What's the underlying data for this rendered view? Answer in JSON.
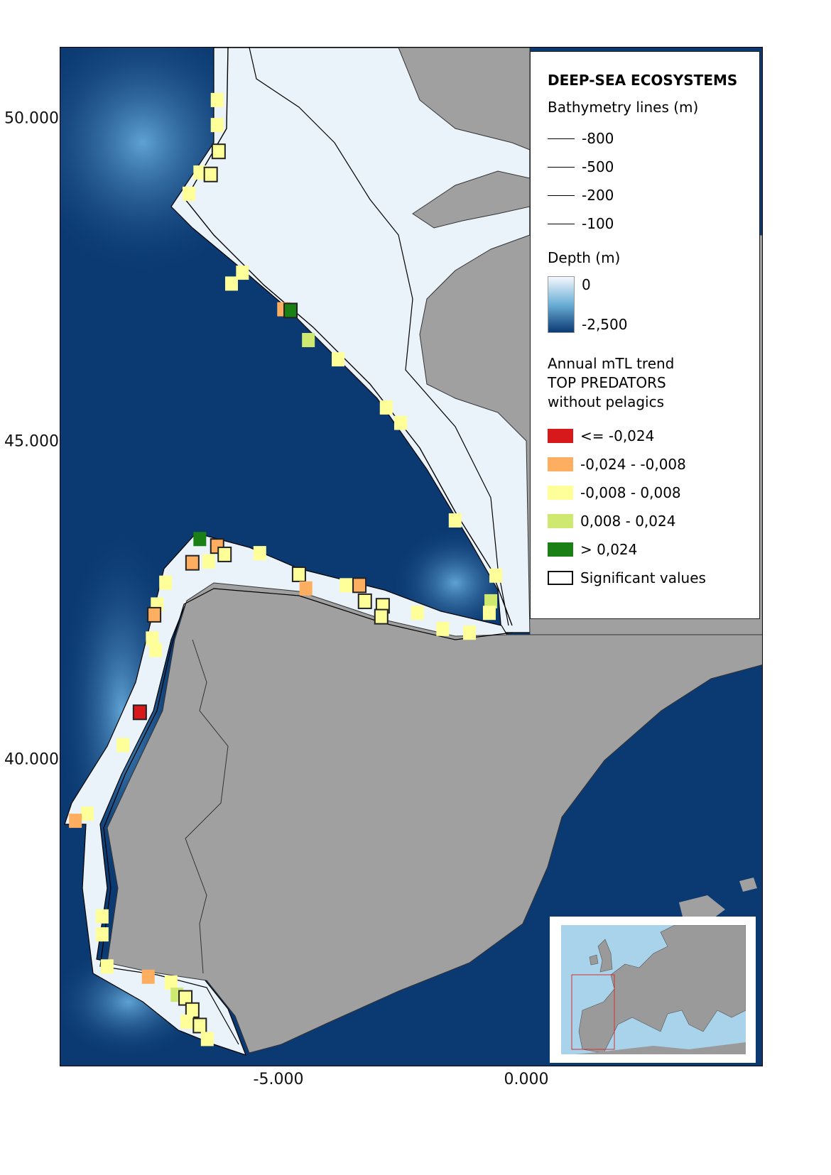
{
  "axes": {
    "lat_labels": [
      {
        "value": 50,
        "text": "50.000"
      },
      {
        "value": 45,
        "text": "45.000"
      },
      {
        "value": 40,
        "text": "40.000"
      }
    ],
    "lon_labels": [
      {
        "value": -5,
        "text": "-5.000"
      },
      {
        "value": 0,
        "text": "0.000"
      }
    ]
  },
  "colors": {
    "deep_sea": "#0b3a72",
    "shelf": "#eaf2fa",
    "land": "#a0a0a0",
    "inset_sea": "#a9d3ea",
    "inset_frame": "#d43030"
  },
  "legend": {
    "title": "DEEP-SEA ECOSYSTEMS",
    "bathymetry_title": "Bathymetry lines (m)",
    "bathymetry_lines": [
      "-800",
      "-500",
      "-200",
      "-100"
    ],
    "depth_title": "Depth (m)",
    "depth_max": "0",
    "depth_min": "-2,500",
    "trend_title_1": "Annual mTL trend",
    "trend_title_2": "TOP PREDATORS",
    "trend_title_3": "without pelagics",
    "classes": [
      {
        "key": "r",
        "label": "<= -0,024",
        "color": "#d7191c"
      },
      {
        "key": "o",
        "label": "-0,024 - -0,008",
        "color": "#fdae61"
      },
      {
        "key": "y",
        "label": "-0,008 - 0,008",
        "color": "#ffff99"
      },
      {
        "key": "lg",
        "label": "0,008 - 0,024",
        "color": "#cfe86f"
      },
      {
        "key": "g",
        "label": "> 0,024",
        "color": "#1a7f14"
      }
    ],
    "significant_label": "Significant values"
  },
  "cells": [
    {
      "lon": -6.25,
      "lat": 50.3,
      "c": "y"
    },
    {
      "lon": -6.25,
      "lat": 49.91,
      "c": "y"
    },
    {
      "lon": -6.22,
      "lat": 49.5,
      "c": "y",
      "sig": true
    },
    {
      "lon": -6.6,
      "lat": 49.17,
      "c": "y"
    },
    {
      "lon": -6.38,
      "lat": 49.14,
      "c": "y",
      "sig": true
    },
    {
      "lon": -6.82,
      "lat": 48.84,
      "c": "y"
    },
    {
      "lon": -5.74,
      "lat": 47.61,
      "c": "y"
    },
    {
      "lon": -5.96,
      "lat": 47.44,
      "c": "y"
    },
    {
      "lon": -4.91,
      "lat": 47.04,
      "c": "o"
    },
    {
      "lon": -4.77,
      "lat": 47.02,
      "c": "g",
      "sig": true
    },
    {
      "lon": -4.41,
      "lat": 46.56,
      "c": "lg"
    },
    {
      "lon": -3.81,
      "lat": 46.26,
      "c": "y"
    },
    {
      "lon": -2.84,
      "lat": 45.51,
      "c": "y"
    },
    {
      "lon": -2.55,
      "lat": 45.27,
      "c": "y"
    },
    {
      "lon": -1.45,
      "lat": 43.75,
      "c": "y"
    },
    {
      "lon": -6.6,
      "lat": 43.46,
      "c": "g"
    },
    {
      "lon": -6.25,
      "lat": 43.35,
      "c": "o",
      "sig": true
    },
    {
      "lon": -6.1,
      "lat": 43.22,
      "c": "y",
      "sig": true
    },
    {
      "lon": -6.42,
      "lat": 43.11,
      "c": "y"
    },
    {
      "lon": -6.75,
      "lat": 43.09,
      "c": "o",
      "sig": true
    },
    {
      "lon": -5.39,
      "lat": 43.24,
      "c": "y"
    },
    {
      "lon": -4.6,
      "lat": 42.91,
      "c": "y",
      "sig": true
    },
    {
      "lon": -4.46,
      "lat": 42.69,
      "c": "o"
    },
    {
      "lon": -3.65,
      "lat": 42.74,
      "c": "y"
    },
    {
      "lon": -3.38,
      "lat": 42.74,
      "c": "o",
      "sig": true
    },
    {
      "lon": -3.27,
      "lat": 42.49,
      "c": "y",
      "sig": true
    },
    {
      "lon": -2.91,
      "lat": 42.42,
      "c": "y",
      "sig": true
    },
    {
      "lon": -2.94,
      "lat": 42.25,
      "c": "y",
      "sig": true
    },
    {
      "lon": -2.21,
      "lat": 42.31,
      "c": "y"
    },
    {
      "lon": -1.7,
      "lat": 42.06,
      "c": "y"
    },
    {
      "lon": -1.16,
      "lat": 42.0,
      "c": "y"
    },
    {
      "lon": -0.63,
      "lat": 42.89,
      "c": "y"
    },
    {
      "lon": -0.73,
      "lat": 42.49,
      "c": "lg"
    },
    {
      "lon": -0.76,
      "lat": 42.31,
      "c": "y"
    },
    {
      "lon": -7.29,
      "lat": 42.78,
      "c": "y"
    },
    {
      "lon": -7.46,
      "lat": 42.44,
      "c": "y"
    },
    {
      "lon": -7.52,
      "lat": 42.28,
      "c": "o",
      "sig": true
    },
    {
      "lon": -7.56,
      "lat": 41.91,
      "c": "y"
    },
    {
      "lon": -7.49,
      "lat": 41.73,
      "c": "y"
    },
    {
      "lon": -7.81,
      "lat": 40.76,
      "c": "r",
      "sig": true
    },
    {
      "lon": -8.15,
      "lat": 40.25,
      "c": "y"
    },
    {
      "lon": -8.87,
      "lat": 39.18,
      "c": "y"
    },
    {
      "lon": -9.11,
      "lat": 39.07,
      "c": "o"
    },
    {
      "lon": -8.57,
      "lat": 37.58,
      "c": "y"
    },
    {
      "lon": -8.57,
      "lat": 37.3,
      "c": "y"
    },
    {
      "lon": -8.47,
      "lat": 36.8,
      "c": "y"
    },
    {
      "lon": -7.64,
      "lat": 36.64,
      "c": "o"
    },
    {
      "lon": -7.18,
      "lat": 36.55,
      "c": "y"
    },
    {
      "lon": -7.06,
      "lat": 36.36,
      "c": "lg"
    },
    {
      "lon": -6.89,
      "lat": 36.31,
      "c": "y",
      "sig": true
    },
    {
      "lon": -6.75,
      "lat": 36.12,
      "c": "y",
      "sig": true
    },
    {
      "lon": -6.86,
      "lat": 35.94,
      "c": "y"
    },
    {
      "lon": -6.6,
      "lat": 35.88,
      "c": "y",
      "sig": true
    },
    {
      "lon": -6.45,
      "lat": 35.67,
      "c": "y"
    }
  ]
}
